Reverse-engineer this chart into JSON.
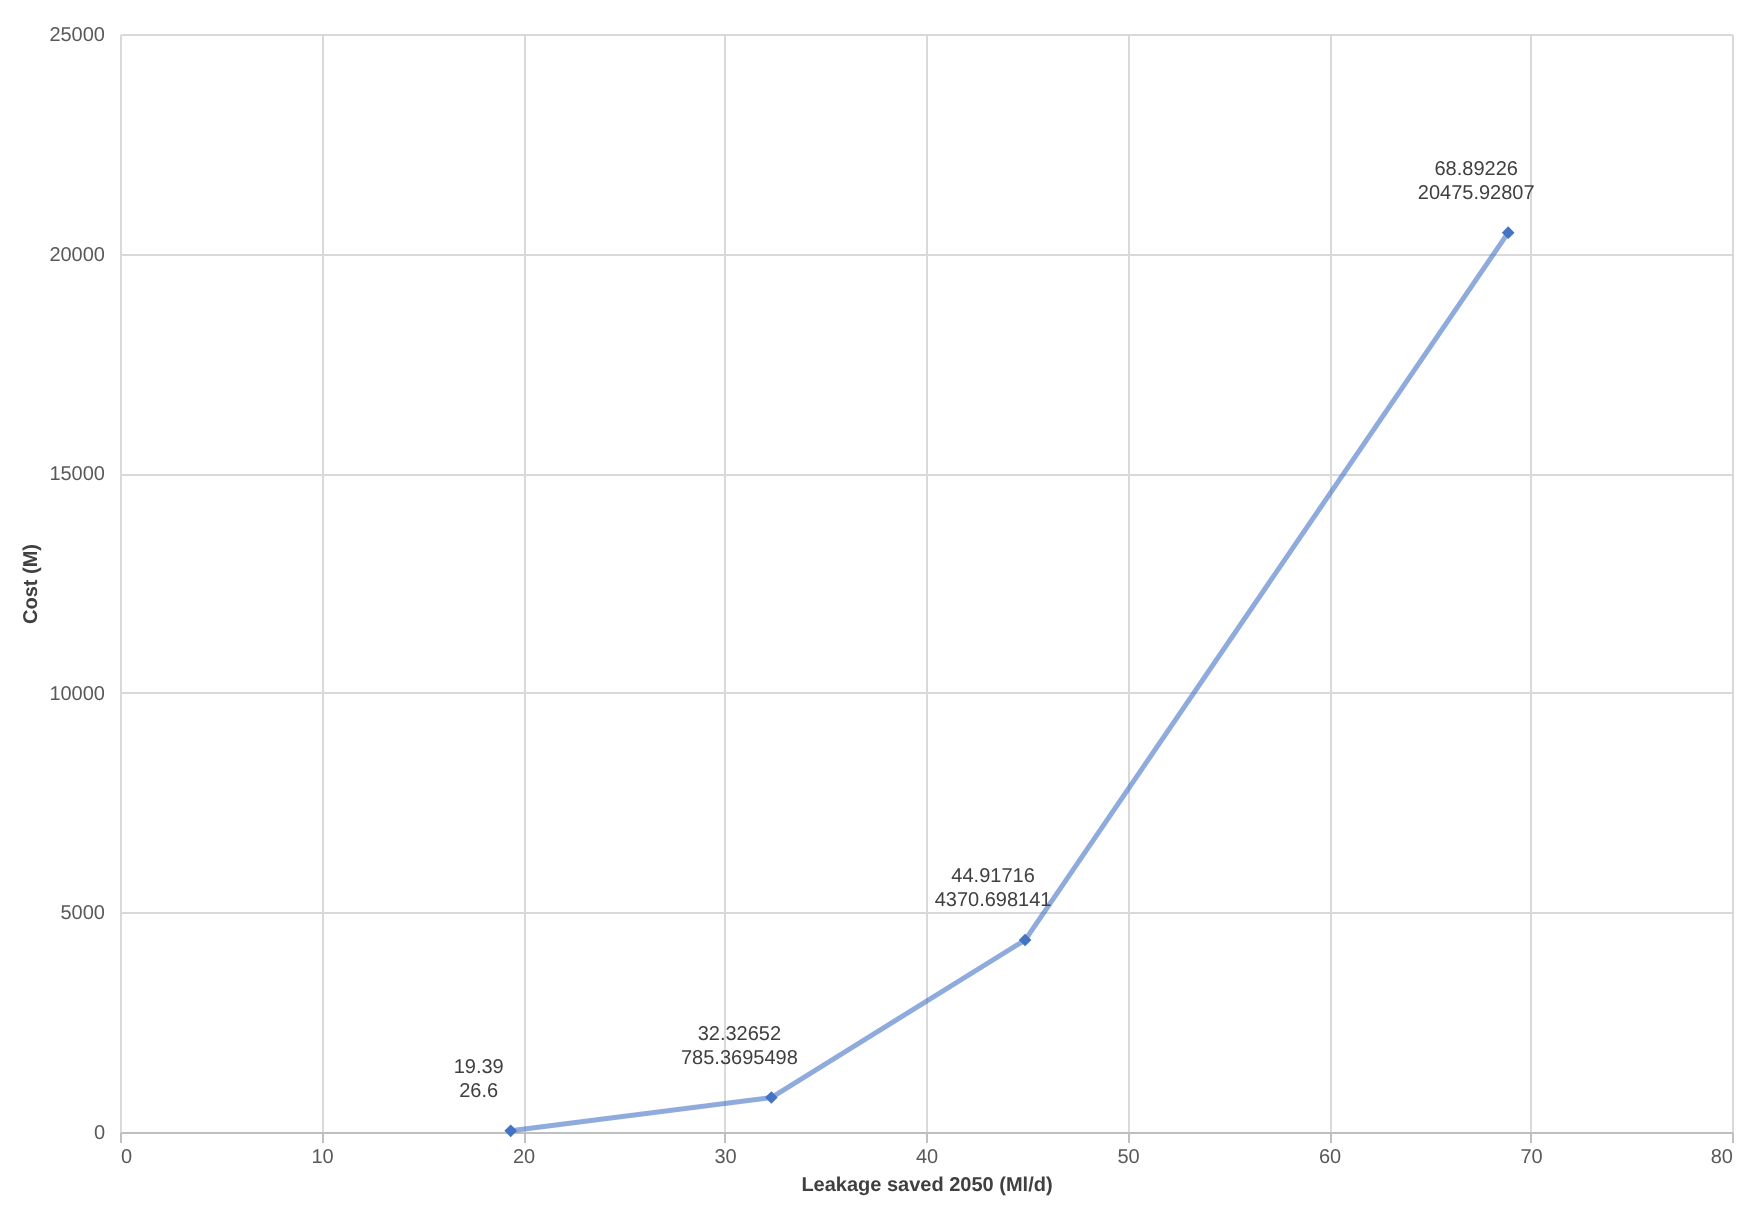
{
  "chart_data": {
    "type": "line",
    "xlabel": "Leakage saved 2050 (Ml/d)",
    "ylabel": "Cost (M)",
    "x": [
      19.39,
      32.32652,
      44.91716,
      68.89226
    ],
    "series": [
      {
        "color": "#4472c4",
        "values": [
          26.6,
          785.3695498,
          4370.698141,
          20475.92807
        ],
        "value_labels": [
          "19.39\n26.6",
          "32.32652\n785.3695498",
          "44.91716\n4370.698141",
          "68.89226\n20475.92807"
        ]
      }
    ],
    "xlim": [
      0,
      80
    ],
    "xticks": [
      0,
      10,
      20,
      30,
      40,
      50,
      60,
      70,
      80
    ],
    "ylim": [
      0,
      25000
    ],
    "yticks": [
      0,
      5000,
      10000,
      15000,
      20000,
      25000
    ],
    "grid": true,
    "marker": "diamond",
    "legend": false
  }
}
